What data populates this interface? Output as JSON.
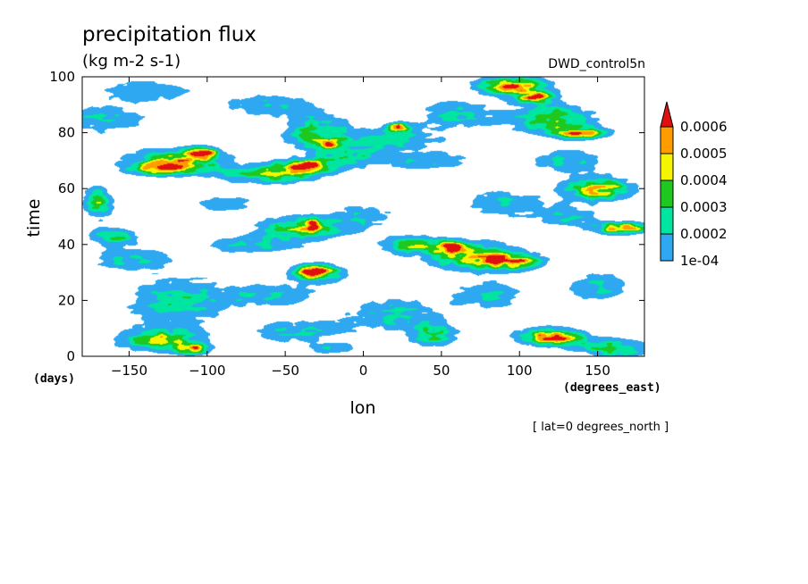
{
  "chart_data": {
    "type": "heatmap",
    "title": "precipitation flux",
    "units": "(kg m-2 s-1)",
    "dataset": "DWD_control5n",
    "xlabel": "lon",
    "ylabel": "time",
    "x_units": "(degrees_east)",
    "y_units": "(days)",
    "annotation": "[ lat=0 degrees_north ]",
    "xlim": [
      -180,
      180
    ],
    "ylim": [
      0,
      100
    ],
    "x_ticks": [
      -150,
      -100,
      -50,
      0,
      50,
      100,
      150
    ],
    "x_tick_labels": [
      "−150",
      "−100",
      "−50",
      "0",
      "50",
      "100",
      "150"
    ],
    "y_ticks": [
      0,
      20,
      40,
      60,
      80,
      100
    ],
    "y_tick_labels": [
      "0",
      "20",
      "40",
      "60",
      "80",
      "100"
    ],
    "colorbar": {
      "levels": [
        0.0001,
        0.0002,
        0.0003,
        0.0004,
        0.0005,
        0.0006
      ],
      "labels": [
        "1e-04",
        "0.0002",
        "0.0003",
        "0.0004",
        "0.0005",
        "0.0006"
      ],
      "colors": [
        "#2ea8f0",
        "#00e5a0",
        "#1ec81e",
        "#f5f500",
        "#ff9c00",
        "#e01010"
      ],
      "extend": "max"
    },
    "features": [
      {
        "lon": -120,
        "time": 20,
        "width": 60,
        "height": 18,
        "peak": 0.00025
      },
      {
        "lon": -130,
        "time": 6,
        "width": 50,
        "height": 8,
        "peak": 0.0004
      },
      {
        "lon": -110,
        "time": 3,
        "width": 20,
        "height": 4,
        "peak": 0.00045
      },
      {
        "lon": -150,
        "time": 35,
        "width": 50,
        "height": 8,
        "peak": 0.00022
      },
      {
        "lon": -160,
        "time": 43,
        "width": 30,
        "height": 6,
        "peak": 0.0003
      },
      {
        "lon": -170,
        "time": 55,
        "width": 18,
        "height": 10,
        "peak": 0.0004
      },
      {
        "lon": -120,
        "time": 70,
        "width": 60,
        "height": 8,
        "peak": 0.00045
      },
      {
        "lon": -105,
        "time": 73,
        "width": 20,
        "height": 4,
        "peak": 0.0006
      },
      {
        "lon": -130,
        "time": 67,
        "width": 40,
        "height": 4,
        "peak": 0.00035
      },
      {
        "lon": -165,
        "time": 85,
        "width": 50,
        "height": 10,
        "peak": 0.00022
      },
      {
        "lon": -140,
        "time": 95,
        "width": 60,
        "height": 8,
        "peak": 0.0002
      },
      {
        "lon": -60,
        "time": 65,
        "width": 60,
        "height": 6,
        "peak": 0.00035
      },
      {
        "lon": -40,
        "time": 68,
        "width": 40,
        "height": 5,
        "peak": 0.0005
      },
      {
        "lon": -35,
        "time": 69,
        "width": 10,
        "height": 2,
        "peak": 0.00065
      },
      {
        "lon": -30,
        "time": 80,
        "width": 40,
        "height": 12,
        "peak": 0.00035
      },
      {
        "lon": -22,
        "time": 76,
        "width": 12,
        "height": 3,
        "peak": 0.00045
      },
      {
        "lon": -10,
        "time": 72,
        "width": 40,
        "height": 8,
        "peak": 0.00025
      },
      {
        "lon": -60,
        "time": 90,
        "width": 60,
        "height": 8,
        "peak": 0.0002
      },
      {
        "lon": -40,
        "time": 46,
        "width": 50,
        "height": 8,
        "peak": 0.0004
      },
      {
        "lon": -32,
        "time": 47,
        "width": 8,
        "height": 4,
        "peak": 0.0005
      },
      {
        "lon": -70,
        "time": 40,
        "width": 60,
        "height": 6,
        "peak": 0.00022
      },
      {
        "lon": -30,
        "time": 30,
        "width": 30,
        "height": 6,
        "peak": 0.00055
      },
      {
        "lon": -32,
        "time": 30.5,
        "width": 12,
        "height": 2.5,
        "peak": 0.0007
      },
      {
        "lon": -60,
        "time": 22,
        "width": 60,
        "height": 8,
        "peak": 0.00022
      },
      {
        "lon": -40,
        "time": 9,
        "width": 60,
        "height": 8,
        "peak": 0.00022
      },
      {
        "lon": -20,
        "time": 3,
        "width": 30,
        "height": 4,
        "peak": 0.0002
      },
      {
        "lon": 20,
        "time": 78,
        "width": 60,
        "height": 8,
        "peak": 0.00025
      },
      {
        "lon": 22,
        "time": 82,
        "width": 14,
        "height": 3,
        "peak": 0.0006
      },
      {
        "lon": 60,
        "time": 87,
        "width": 50,
        "height": 10,
        "peak": 0.00022
      },
      {
        "lon": 40,
        "time": 70,
        "width": 60,
        "height": 6,
        "peak": 0.00022
      },
      {
        "lon": 70,
        "time": 36,
        "width": 60,
        "height": 10,
        "peak": 0.0004
      },
      {
        "lon": 55,
        "time": 39,
        "width": 15,
        "height": 4,
        "peak": 0.00055
      },
      {
        "lon": 95,
        "time": 34,
        "width": 35,
        "height": 5,
        "peak": 0.0005
      },
      {
        "lon": 30,
        "time": 40,
        "width": 40,
        "height": 6,
        "peak": 0.0003
      },
      {
        "lon": 20,
        "time": 15,
        "width": 60,
        "height": 12,
        "peak": 0.00022
      },
      {
        "lon": 45,
        "time": 8,
        "width": 30,
        "height": 8,
        "peak": 0.0003
      },
      {
        "lon": 80,
        "time": 22,
        "width": 50,
        "height": 10,
        "peak": 0.0002
      },
      {
        "lon": 95,
        "time": 97,
        "width": 40,
        "height": 6,
        "peak": 0.0006
      },
      {
        "lon": 110,
        "time": 93,
        "width": 25,
        "height": 4,
        "peak": 0.0006
      },
      {
        "lon": 120,
        "time": 85,
        "width": 50,
        "height": 10,
        "peak": 0.0004
      },
      {
        "lon": 140,
        "time": 80,
        "width": 30,
        "height": 4,
        "peak": 0.0005
      },
      {
        "lon": 150,
        "time": 60,
        "width": 40,
        "height": 8,
        "peak": 0.0005
      },
      {
        "lon": 165,
        "time": 46,
        "width": 30,
        "height": 4,
        "peak": 0.0006
      },
      {
        "lon": 130,
        "time": 70,
        "width": 40,
        "height": 8,
        "peak": 0.00025
      },
      {
        "lon": 120,
        "time": 7,
        "width": 40,
        "height": 6,
        "peak": 0.0006
      },
      {
        "lon": 160,
        "time": 3,
        "width": 40,
        "height": 6,
        "peak": 0.0004
      },
      {
        "lon": 150,
        "time": 25,
        "width": 40,
        "height": 10,
        "peak": 0.00022
      },
      {
        "lon": 130,
        "time": 50,
        "width": 40,
        "height": 8,
        "peak": 0.00022
      },
      {
        "lon": 90,
        "time": 55,
        "width": 50,
        "height": 10,
        "peak": 0.0002
      },
      {
        "lon": -90,
        "time": 55,
        "width": 40,
        "height": 6,
        "peak": 0.0002
      },
      {
        "lon": 0,
        "time": 50,
        "width": 40,
        "height": 10,
        "peak": 0.00018
      }
    ]
  }
}
